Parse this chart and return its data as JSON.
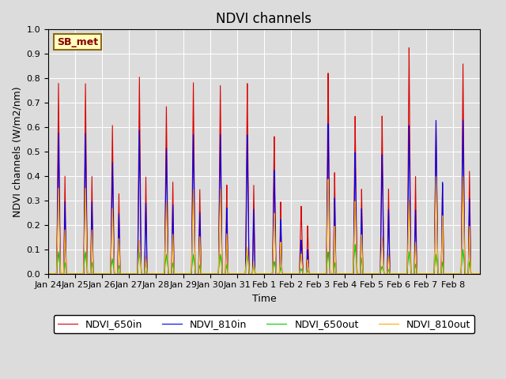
{
  "title": "NDVI channels",
  "xlabel": "Time",
  "ylabel": "NDVI channels (W/m2/nm)",
  "ylim": [
    0.0,
    1.0
  ],
  "annotation_text": "SB_met",
  "legend_labels": [
    "NDVI_650in",
    "NDVI_810in",
    "NDVI_650out",
    "NDVI_810out"
  ],
  "line_colors": [
    "#dd0000",
    "#0000ee",
    "#00cc00",
    "#ffaa00"
  ],
  "background_color": "#dcdcdc",
  "fig_facecolor": "#dcdcdc",
  "daily_peaks": [
    {
      "day": 0,
      "p1": 0.4,
      "p2": 0.78,
      "r810in_f": 0.74,
      "r650out_f": 0.115,
      "r810out_f": 0.45
    },
    {
      "day": 1,
      "p1": 0.4,
      "p2": 0.78,
      "r810in_f": 0.74,
      "r650out_f": 0.115,
      "r810out_f": 0.45
    },
    {
      "day": 2,
      "p1": 0.33,
      "p2": 0.61,
      "r810in_f": 0.75,
      "r650out_f": 0.1,
      "r810out_f": 0.44
    },
    {
      "day": 3,
      "p1": 0.4,
      "p2": 0.81,
      "r810in_f": 0.73,
      "r650out_f": 0.11,
      "r810out_f": 0.17
    },
    {
      "day": 4,
      "p1": 0.38,
      "p2": 0.69,
      "r810in_f": 0.75,
      "r650out_f": 0.115,
      "r810out_f": 0.43
    },
    {
      "day": 5,
      "p1": 0.35,
      "p2": 0.79,
      "r810in_f": 0.73,
      "r650out_f": 0.101,
      "r810out_f": 0.44
    },
    {
      "day": 6,
      "p1": 0.37,
      "p2": 0.78,
      "r810in_f": 0.74,
      "r650out_f": 0.103,
      "r810out_f": 0.45
    },
    {
      "day": 7,
      "p1": 0.37,
      "p2": 0.79,
      "r810in_f": 0.73,
      "r650out_f": 0.101,
      "r810out_f": 0.14
    },
    {
      "day": 8,
      "p1": 0.3,
      "p2": 0.57,
      "r810in_f": 0.755,
      "r650out_f": 0.088,
      "r810out_f": 0.44
    },
    {
      "day": 9,
      "p1": 0.2,
      "p2": 0.28,
      "r810in_f": 0.5,
      "r650out_f": 0.071,
      "r810out_f": 0.29
    },
    {
      "day": 10,
      "p1": 0.42,
      "p2": 0.83,
      "r810in_f": 0.748,
      "r650out_f": 0.108,
      "r810out_f": 0.47
    },
    {
      "day": 11,
      "p1": 0.35,
      "p2": 0.65,
      "r810in_f": 0.77,
      "r650out_f": 0.185,
      "r810out_f": 0.46
    },
    {
      "day": 12,
      "p1": 0.35,
      "p2": 0.65,
      "r810in_f": 0.755,
      "r650out_f": 0.046,
      "r810out_f": 0.23
    },
    {
      "day": 13,
      "p1": 0.4,
      "p2": 0.93,
      "r810in_f": 0.656,
      "r650out_f": 0.097,
      "r810out_f": 0.323
    },
    {
      "day": 14,
      "p1": 0.37,
      "p2": 0.62,
      "r810in_f": 1.016,
      "r650out_f": 0.129,
      "r810out_f": 0.645
    },
    {
      "day": 15,
      "p1": 0.42,
      "p2": 0.86,
      "r810in_f": 0.733,
      "r650out_f": 0.116,
      "r810out_f": 0.465
    }
  ],
  "xtick_labels": [
    "Jan 24",
    "Jan 25",
    "Jan 26",
    "Jan 27",
    "Jan 28",
    "Jan 29",
    "Jan 30",
    "Jan 31",
    "Feb 1",
    "Feb 2",
    "Feb 3",
    "Feb 4",
    "Feb 5",
    "Feb 6",
    "Feb 7",
    "Feb 8"
  ],
  "xtick_positions": [
    0,
    1,
    2,
    3,
    4,
    5,
    6,
    7,
    8,
    9,
    10,
    11,
    12,
    13,
    14,
    15
  ]
}
